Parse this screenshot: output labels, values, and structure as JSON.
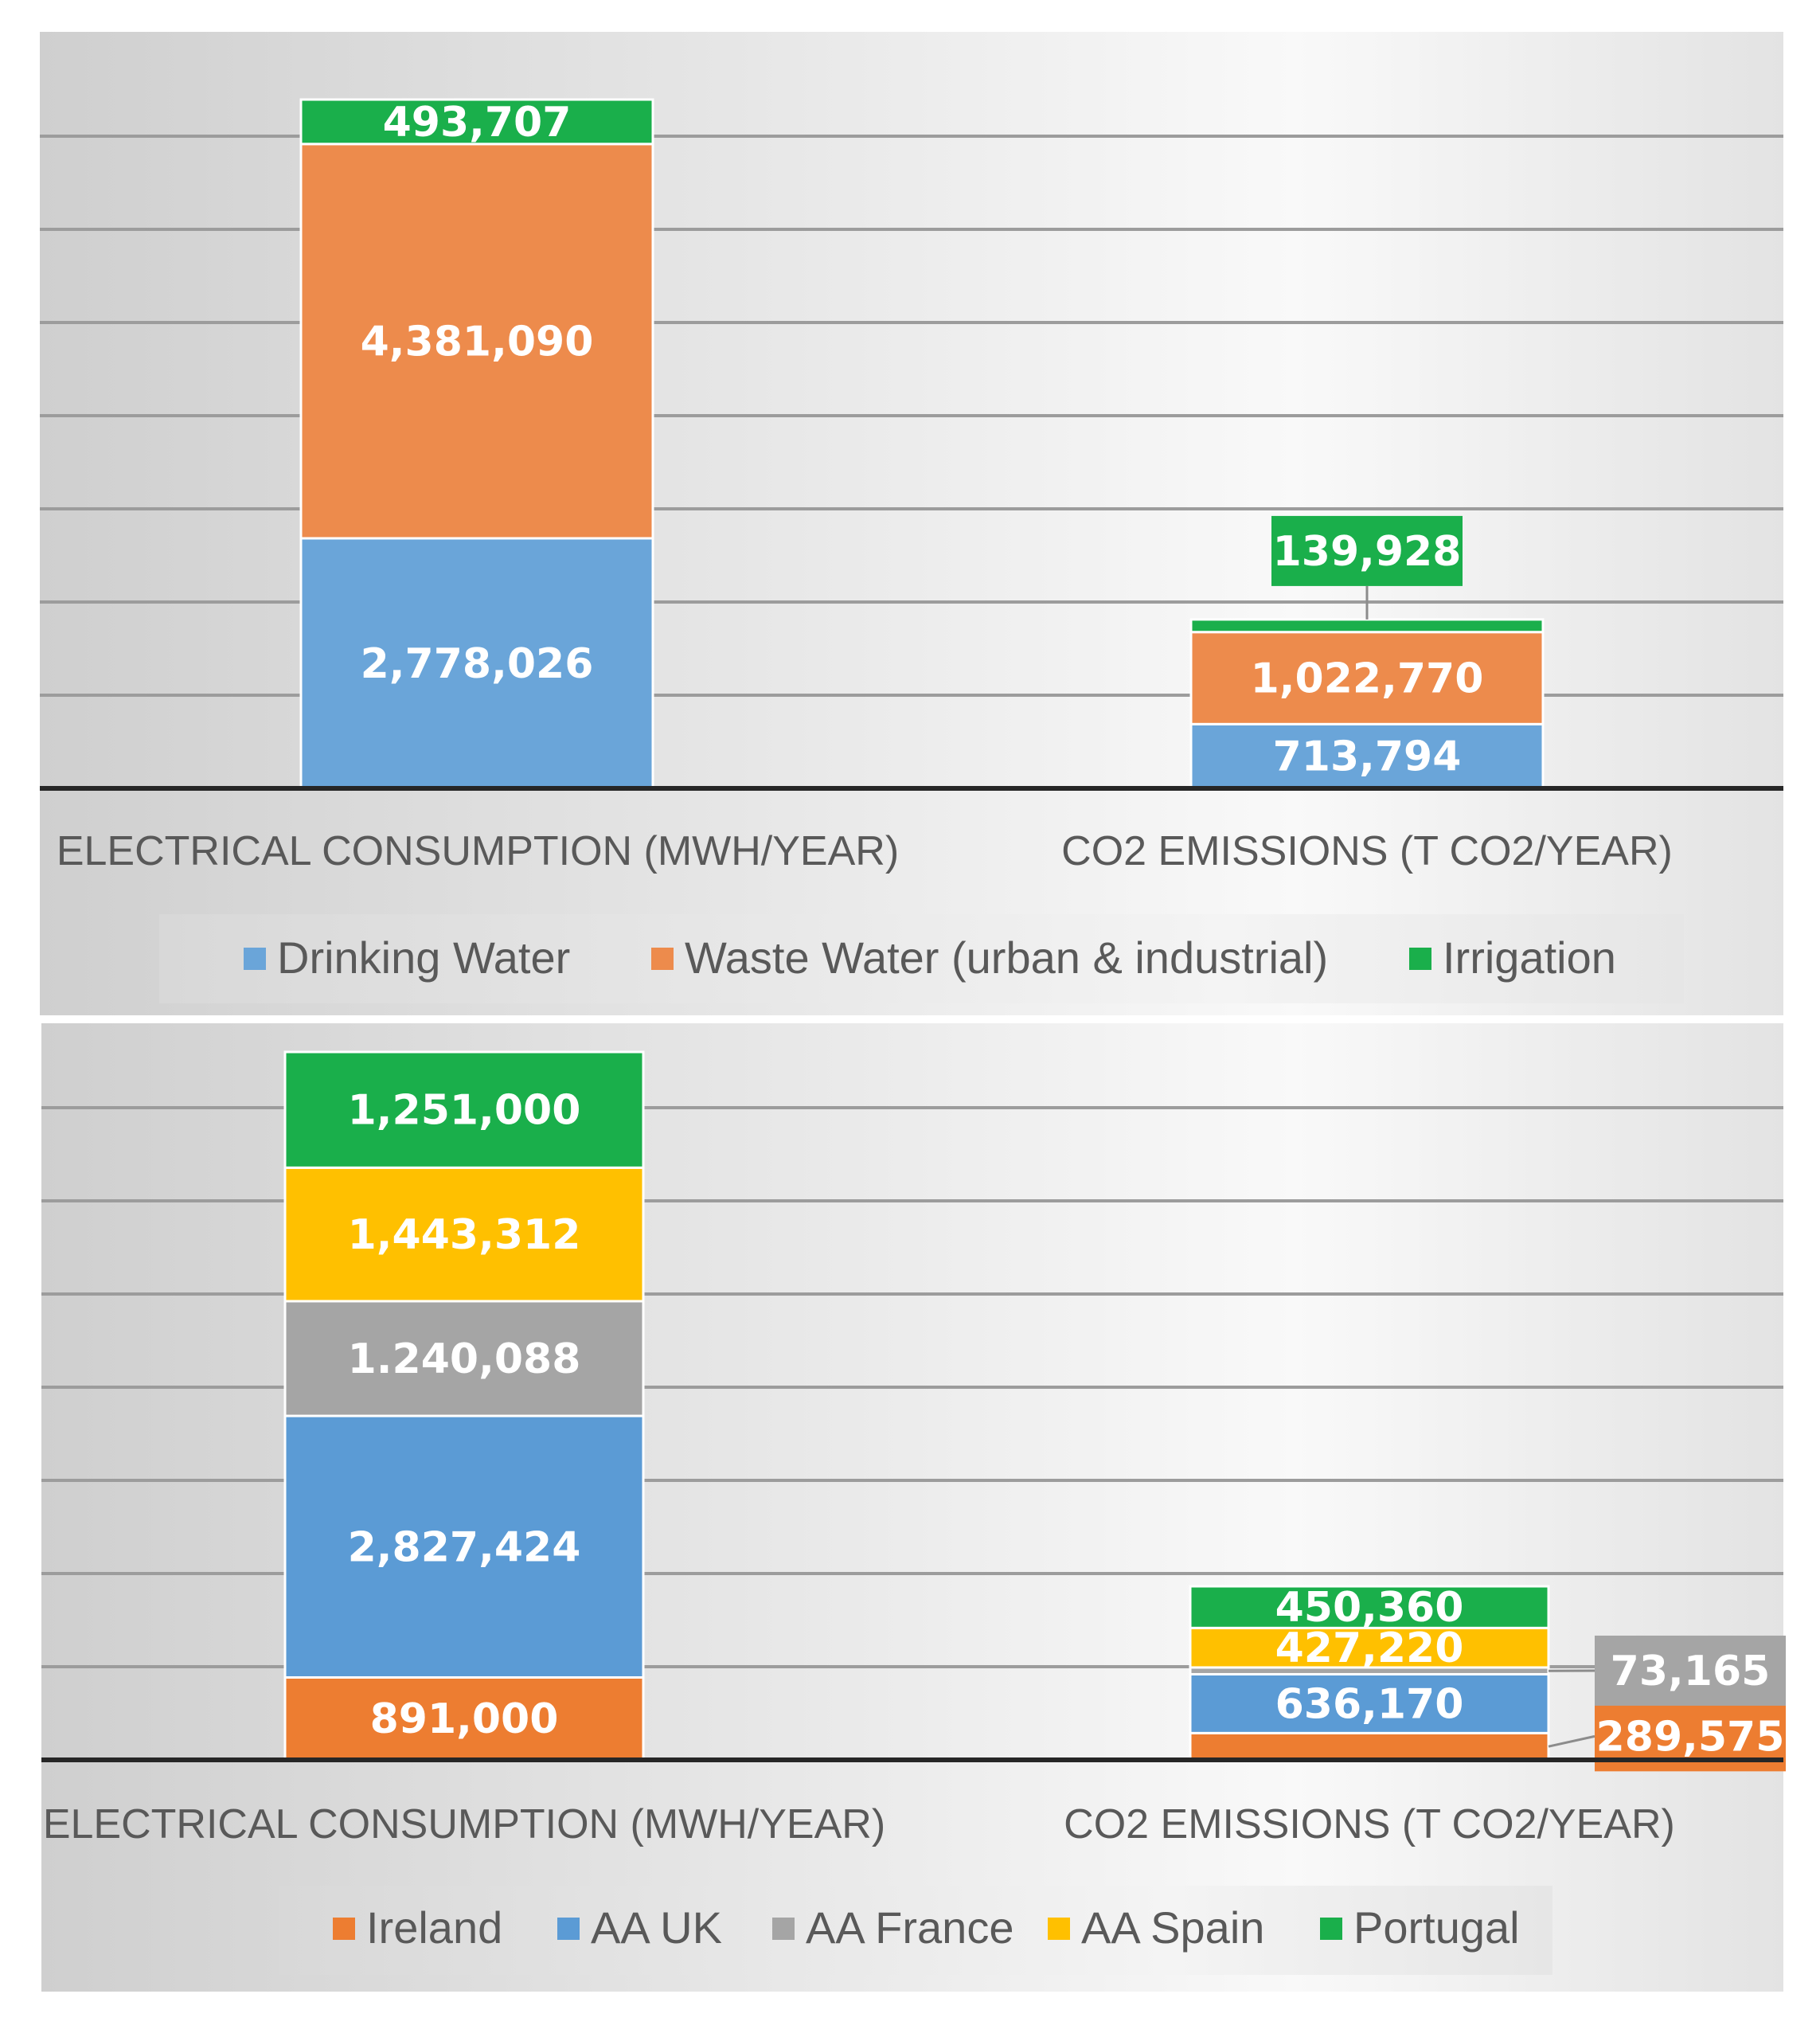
{
  "colors": {
    "drinking": "#6aa5d9",
    "waste": "#ed8b4c",
    "irrigation": "#1aaf4b",
    "ireland": "#ed7d31",
    "uk": "#5b9bd5",
    "france": "#a5a5a5",
    "spain": "#ffc000",
    "portugal": "#1aaf4b"
  },
  "chart_data": [
    {
      "type": "bar",
      "stacked": true,
      "categories": [
        "ELECTRICAL CONSUMPTION (MWH/YEAR)",
        "CO2 EMISSIONS (T CO2/YEAR)"
      ],
      "series": [
        {
          "name": "Drinking Water",
          "color_key": "drinking",
          "values": [
            2778026,
            713794
          ],
          "labels": [
            "2,778,026",
            "713,794"
          ]
        },
        {
          "name": "Waste Water (urban & industrial)",
          "color_key": "waste",
          "values": [
            4381090,
            1022770
          ],
          "labels": [
            "4,381,090",
            "1,022,770"
          ]
        },
        {
          "name": "Irrigation",
          "color_key": "irrigation",
          "values": [
            493707,
            139928
          ],
          "labels": [
            "493,707",
            "139,928"
          ]
        }
      ],
      "ylim": [
        0,
        7653000
      ],
      "grid": true,
      "legend": "bottom"
    },
    {
      "type": "bar",
      "stacked": true,
      "categories": [
        "ELECTRICAL CONSUMPTION (MWH/YEAR)",
        "CO2 EMISSIONS (T CO2/YEAR)"
      ],
      "series": [
        {
          "name": "Ireland",
          "color_key": "ireland",
          "values": [
            891000,
            289575
          ],
          "labels": [
            "891,000",
            "289,575"
          ]
        },
        {
          "name": "AA UK",
          "color_key": "uk",
          "values": [
            2827424,
            636170
          ],
          "labels": [
            "2,827,424",
            "636,170"
          ]
        },
        {
          "name": "AA France",
          "color_key": "france",
          "values": [
            1240088,
            73165
          ],
          "labels": [
            "1.240,088",
            "73,165"
          ]
        },
        {
          "name": "AA Spain",
          "color_key": "spain",
          "values": [
            1443312,
            427220
          ],
          "labels": [
            "1,443,312",
            "427,220"
          ]
        },
        {
          "name": "Portugal",
          "color_key": "portugal",
          "values": [
            1251000,
            450360
          ],
          "labels": [
            "1,251,000",
            "450,360"
          ]
        }
      ],
      "ylim": [
        0,
        7653000
      ],
      "grid": true,
      "legend": "bottom"
    }
  ]
}
